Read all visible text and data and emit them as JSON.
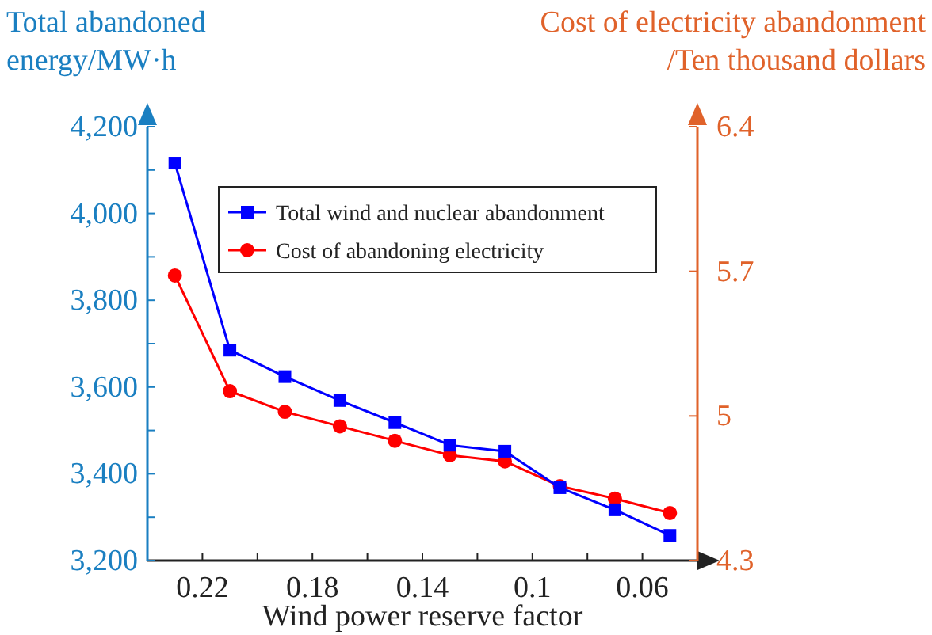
{
  "chart_data": {
    "type": "line",
    "xlabel": "Wind power reserve factor",
    "ylabel": "Total abandoned\nenergy/MW·h",
    "y2label": "Cost of electricity abandonment\n/Ten thousand dollars",
    "x": [
      0.23,
      0.21,
      0.19,
      0.17,
      0.15,
      0.13,
      0.11,
      0.09,
      0.07,
      0.05
    ],
    "series": [
      {
        "name": "Total wind and nuclear abandonment",
        "color": "#0000ff",
        "marker": "square",
        "values": [
          4116,
          3685,
          3624,
          3569,
          3518,
          3466,
          3452,
          3368,
          3317,
          3258
        ]
      },
      {
        "name": "Cost of abandoning electricity",
        "color": "#ff0000",
        "marker": "circle",
        "axis": "y2",
        "values": [
          5.68,
          5.12,
          5.02,
          4.95,
          4.88,
          4.81,
          4.78,
          4.66,
          4.6,
          4.53
        ]
      }
    ],
    "xlim": [
      0.24,
      0.04
    ],
    "xticks": [
      0.22,
      {
        "value": 0.2,
        "label": null
      },
      0.18,
      {
        "value": 0.16,
        "label": null
      },
      0.14,
      {
        "value": 0.12,
        "label": null
      },
      0.1,
      {
        "value": 0.08,
        "label": null
      },
      0.06
    ],
    "ylim": [
      3200,
      4200
    ],
    "yticks": [
      {
        "value": 3200,
        "label": "3,200"
      },
      {
        "value": 3300,
        "label": null
      },
      {
        "value": 3400,
        "label": "3,400"
      },
      {
        "value": 3500,
        "label": null
      },
      {
        "value": 3600,
        "label": "3,600"
      },
      {
        "value": 3700,
        "label": null
      },
      {
        "value": 3800,
        "label": "3,800"
      },
      {
        "value": 3900,
        "label": null
      },
      {
        "value": 4000,
        "label": "4,000"
      },
      {
        "value": 4100,
        "label": null
      },
      {
        "value": 4200,
        "label": "4,200"
      }
    ],
    "y2lim": [
      4.3,
      6.4
    ],
    "y2ticks": [
      4.3,
      5,
      5.7,
      6.4
    ],
    "grid": false,
    "legend": "top",
    "line_style": "solid"
  }
}
